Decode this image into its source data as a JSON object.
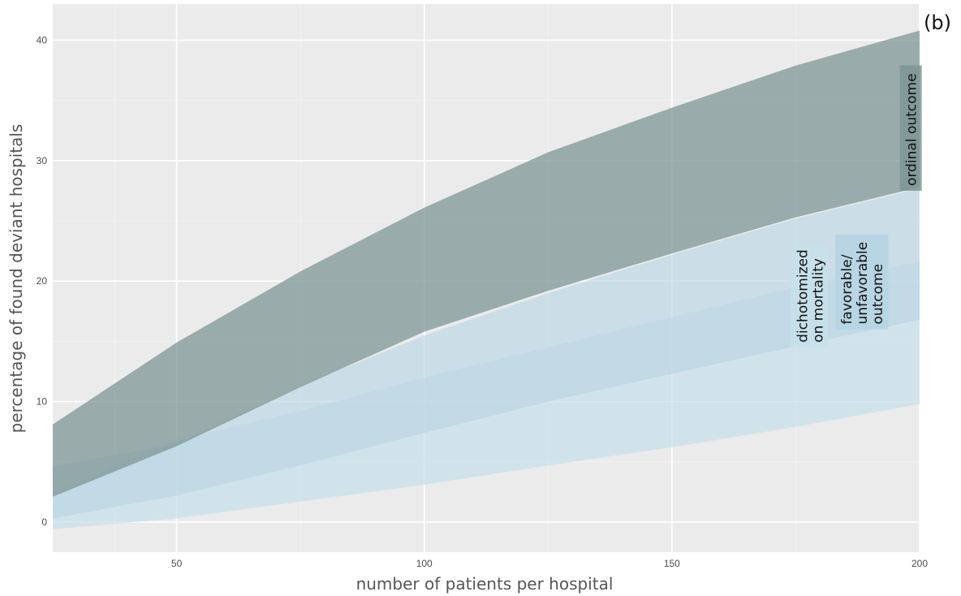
{
  "panel_tag": "(b)",
  "chart_data": {
    "type": "area",
    "xlabel": "number of patients per hospital",
    "ylabel": "percentage of found deviant hospitals",
    "xlim": [
      25,
      200
    ],
    "ylim": [
      -2.5,
      43
    ],
    "x_ticks": [
      50,
      100,
      150,
      200
    ],
    "y_ticks": [
      0,
      10,
      20,
      30,
      40
    ],
    "grid": true,
    "legend": "none",
    "series": [
      {
        "name": "dichotomized on mortality",
        "color": "#c6e0ea",
        "opacity": 0.7,
        "x": [
          25,
          50,
          75,
          100,
          125,
          150,
          175,
          200
        ],
        "lower": [
          -0.6,
          0.3,
          1.7,
          3.1,
          4.7,
          6.2,
          7.9,
          9.8
        ],
        "upper": [
          2.4,
          6.8,
          9.2,
          12.0,
          14.5,
          17.0,
          19.5,
          21.6
        ],
        "label_lines": [
          "dichotomized",
          "on mortality"
        ]
      },
      {
        "name": "favorable/ unfavorable outcome",
        "color": "#b6d4e2",
        "opacity": 0.6,
        "x": [
          25,
          50,
          75,
          100,
          125,
          150,
          175,
          200
        ],
        "lower": [
          0.3,
          2.2,
          4.7,
          7.4,
          10.0,
          12.3,
          14.6,
          16.8
        ],
        "upper": [
          4.6,
          6.5,
          11.3,
          15.5,
          19.0,
          22.2,
          25.2,
          27.7
        ],
        "label_lines": [
          "favorable/",
          "unfavorable",
          "outcome"
        ]
      },
      {
        "name": "ordinal outcome",
        "color": "#7f9595",
        "opacity": 0.75,
        "x": [
          25,
          50,
          75,
          100,
          125,
          150,
          175,
          200
        ],
        "lower": [
          2.1,
          6.3,
          11.2,
          15.8,
          19.2,
          22.3,
          25.3,
          27.8
        ],
        "upper": [
          8.1,
          14.9,
          20.8,
          26.1,
          30.7,
          34.4,
          37.9,
          40.8
        ],
        "label_lines": [
          "ordinal outcome"
        ]
      }
    ]
  }
}
